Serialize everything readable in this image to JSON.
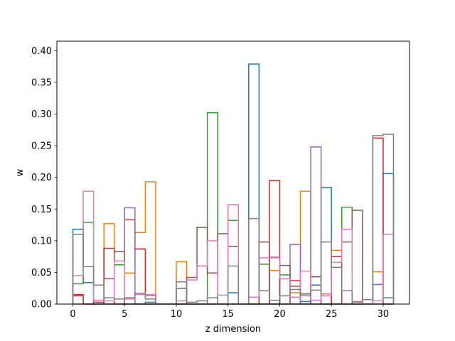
{
  "chart_data": {
    "type": "histogram-step",
    "title": "",
    "xlabel": "z dimension",
    "ylabel": "w",
    "xlim": [
      -1.55,
      32.55
    ],
    "ylim": [
      0,
      0.415
    ],
    "grid": false,
    "legend": "none",
    "bin_edges": [
      0,
      1,
      2,
      3,
      4,
      5,
      6,
      7,
      8,
      9,
      10,
      11,
      12,
      13,
      14,
      15,
      16,
      17,
      18,
      19,
      20,
      21,
      22,
      23,
      24,
      25,
      26,
      27,
      28,
      29,
      30,
      31
    ],
    "x_ticks": [
      0,
      5,
      10,
      15,
      20,
      25,
      30
    ],
    "x_tick_labels": [
      "0",
      "5",
      "10",
      "15",
      "20",
      "25",
      "30"
    ],
    "y_ticks": [
      0,
      0.05,
      0.1,
      0.15,
      0.2,
      0.25,
      0.3,
      0.35,
      0.4
    ],
    "y_tick_labels": [
      "0.00",
      "0.05",
      "0.10",
      "0.15",
      "0.20",
      "0.25",
      "0.30",
      "0.35",
      "0.40"
    ],
    "series": [
      {
        "color": "#1f77b4",
        "values": [
          0.118,
          0.034,
          0,
          0,
          0,
          0,
          0,
          0.003,
          0,
          0,
          0.025,
          0,
          0,
          0,
          0,
          0.018,
          0,
          0.379,
          0,
          0,
          0,
          0,
          0.004,
          0.03,
          0.184,
          0,
          0,
          0,
          0,
          0.031,
          0.206
        ]
      },
      {
        "color": "#ff7f0e",
        "values": [
          0.013,
          0,
          0,
          0.127,
          0,
          0.049,
          0.113,
          0.193,
          0,
          0,
          0.067,
          0,
          0,
          0,
          0,
          0,
          0,
          0,
          0,
          0.053,
          0,
          0.018,
          0.178,
          0,
          0.016,
          0.085,
          0,
          0,
          0,
          0.051,
          0
        ]
      },
      {
        "color": "#2ca02c",
        "values": [
          0.032,
          0.129,
          0,
          0,
          0.062,
          0,
          0,
          0,
          0,
          0,
          0,
          0,
          0,
          0.302,
          0,
          0.132,
          0,
          0,
          0.063,
          0,
          0.046,
          0,
          0,
          0,
          0,
          0,
          0.153,
          0,
          0,
          0,
          0.01
        ]
      },
      {
        "color": "#d62728",
        "values": [
          0.015,
          0,
          0.003,
          0.088,
          0,
          0.133,
          0.087,
          0.014,
          0,
          0,
          0,
          0,
          0,
          0,
          0,
          0,
          0,
          0,
          0,
          0.195,
          0,
          0.037,
          0,
          0.043,
          0,
          0.075,
          0,
          0,
          0,
          0.262,
          0
        ]
      },
      {
        "color": "#9467bd",
        "values": [
          0,
          0,
          0,
          0,
          0,
          0.152,
          0,
          0,
          0,
          0,
          0,
          0,
          0,
          0,
          0,
          0,
          0,
          0,
          0,
          0.074,
          0,
          0.094,
          0,
          0.248,
          0,
          0,
          0,
          0,
          0,
          0.031,
          0
        ]
      },
      {
        "color": "#8c564b",
        "values": [
          0.013,
          0,
          0,
          0.04,
          0.083,
          0,
          0,
          0,
          0,
          0,
          0,
          0.042,
          0.121,
          0.049,
          0.111,
          0.091,
          0,
          0,
          0.098,
          0,
          0.061,
          0.028,
          0.016,
          0,
          0,
          0,
          0.098,
          0.148,
          0,
          0,
          0
        ]
      },
      {
        "color": "#e377c2",
        "values": [
          0.045,
          0.178,
          0.006,
          0.005,
          0.068,
          0.008,
          0.015,
          0.015,
          0,
          0,
          0.005,
          0.038,
          0.06,
          0.1,
          0.014,
          0.157,
          0,
          0.011,
          0.073,
          0.073,
          0.04,
          0.011,
          0.052,
          0.006,
          0.013,
          0.066,
          0.118,
          0.004,
          0,
          0.005,
          0.11
        ]
      },
      {
        "color": "#7f7f7f",
        "values": [
          0.11,
          0.059,
          0.03,
          0.01,
          0.008,
          0.01,
          0.017,
          0.008,
          0,
          0,
          0.035,
          0.003,
          0.005,
          0.01,
          0,
          0.06,
          0,
          0.135,
          0.021,
          0.006,
          0.013,
          0.023,
          0.013,
          0.022,
          0.098,
          0.058,
          0.021,
          0.003,
          0.007,
          0.266,
          0.268
        ]
      }
    ]
  }
}
